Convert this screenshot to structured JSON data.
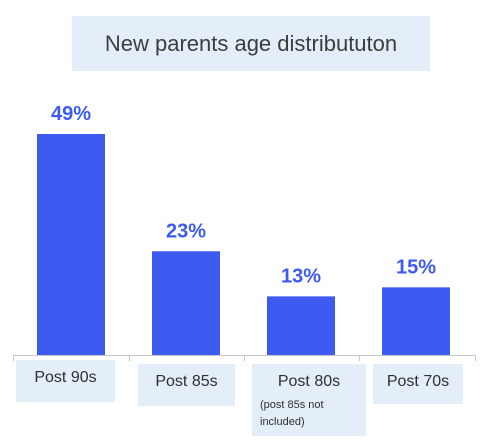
{
  "chart_data": {
    "type": "bar",
    "title": "New parents age distribututon",
    "categories": [
      "Post 90s",
      "Post 85s",
      "Post 80s",
      "Post 70s"
    ],
    "category_notes": [
      "",
      "",
      "(post 85s not included)",
      ""
    ],
    "values": [
      49,
      23,
      13,
      15
    ],
    "value_labels": [
      "49%",
      "23%",
      "13%",
      "15%"
    ],
    "xlabel": "",
    "ylabel": "",
    "ylim": [
      0,
      55
    ],
    "grid": false,
    "colors": {
      "bar": "#3d5af1",
      "label": "#3d5af1",
      "label_box": "#e4eef8",
      "axis": "#c8c8c8"
    }
  }
}
